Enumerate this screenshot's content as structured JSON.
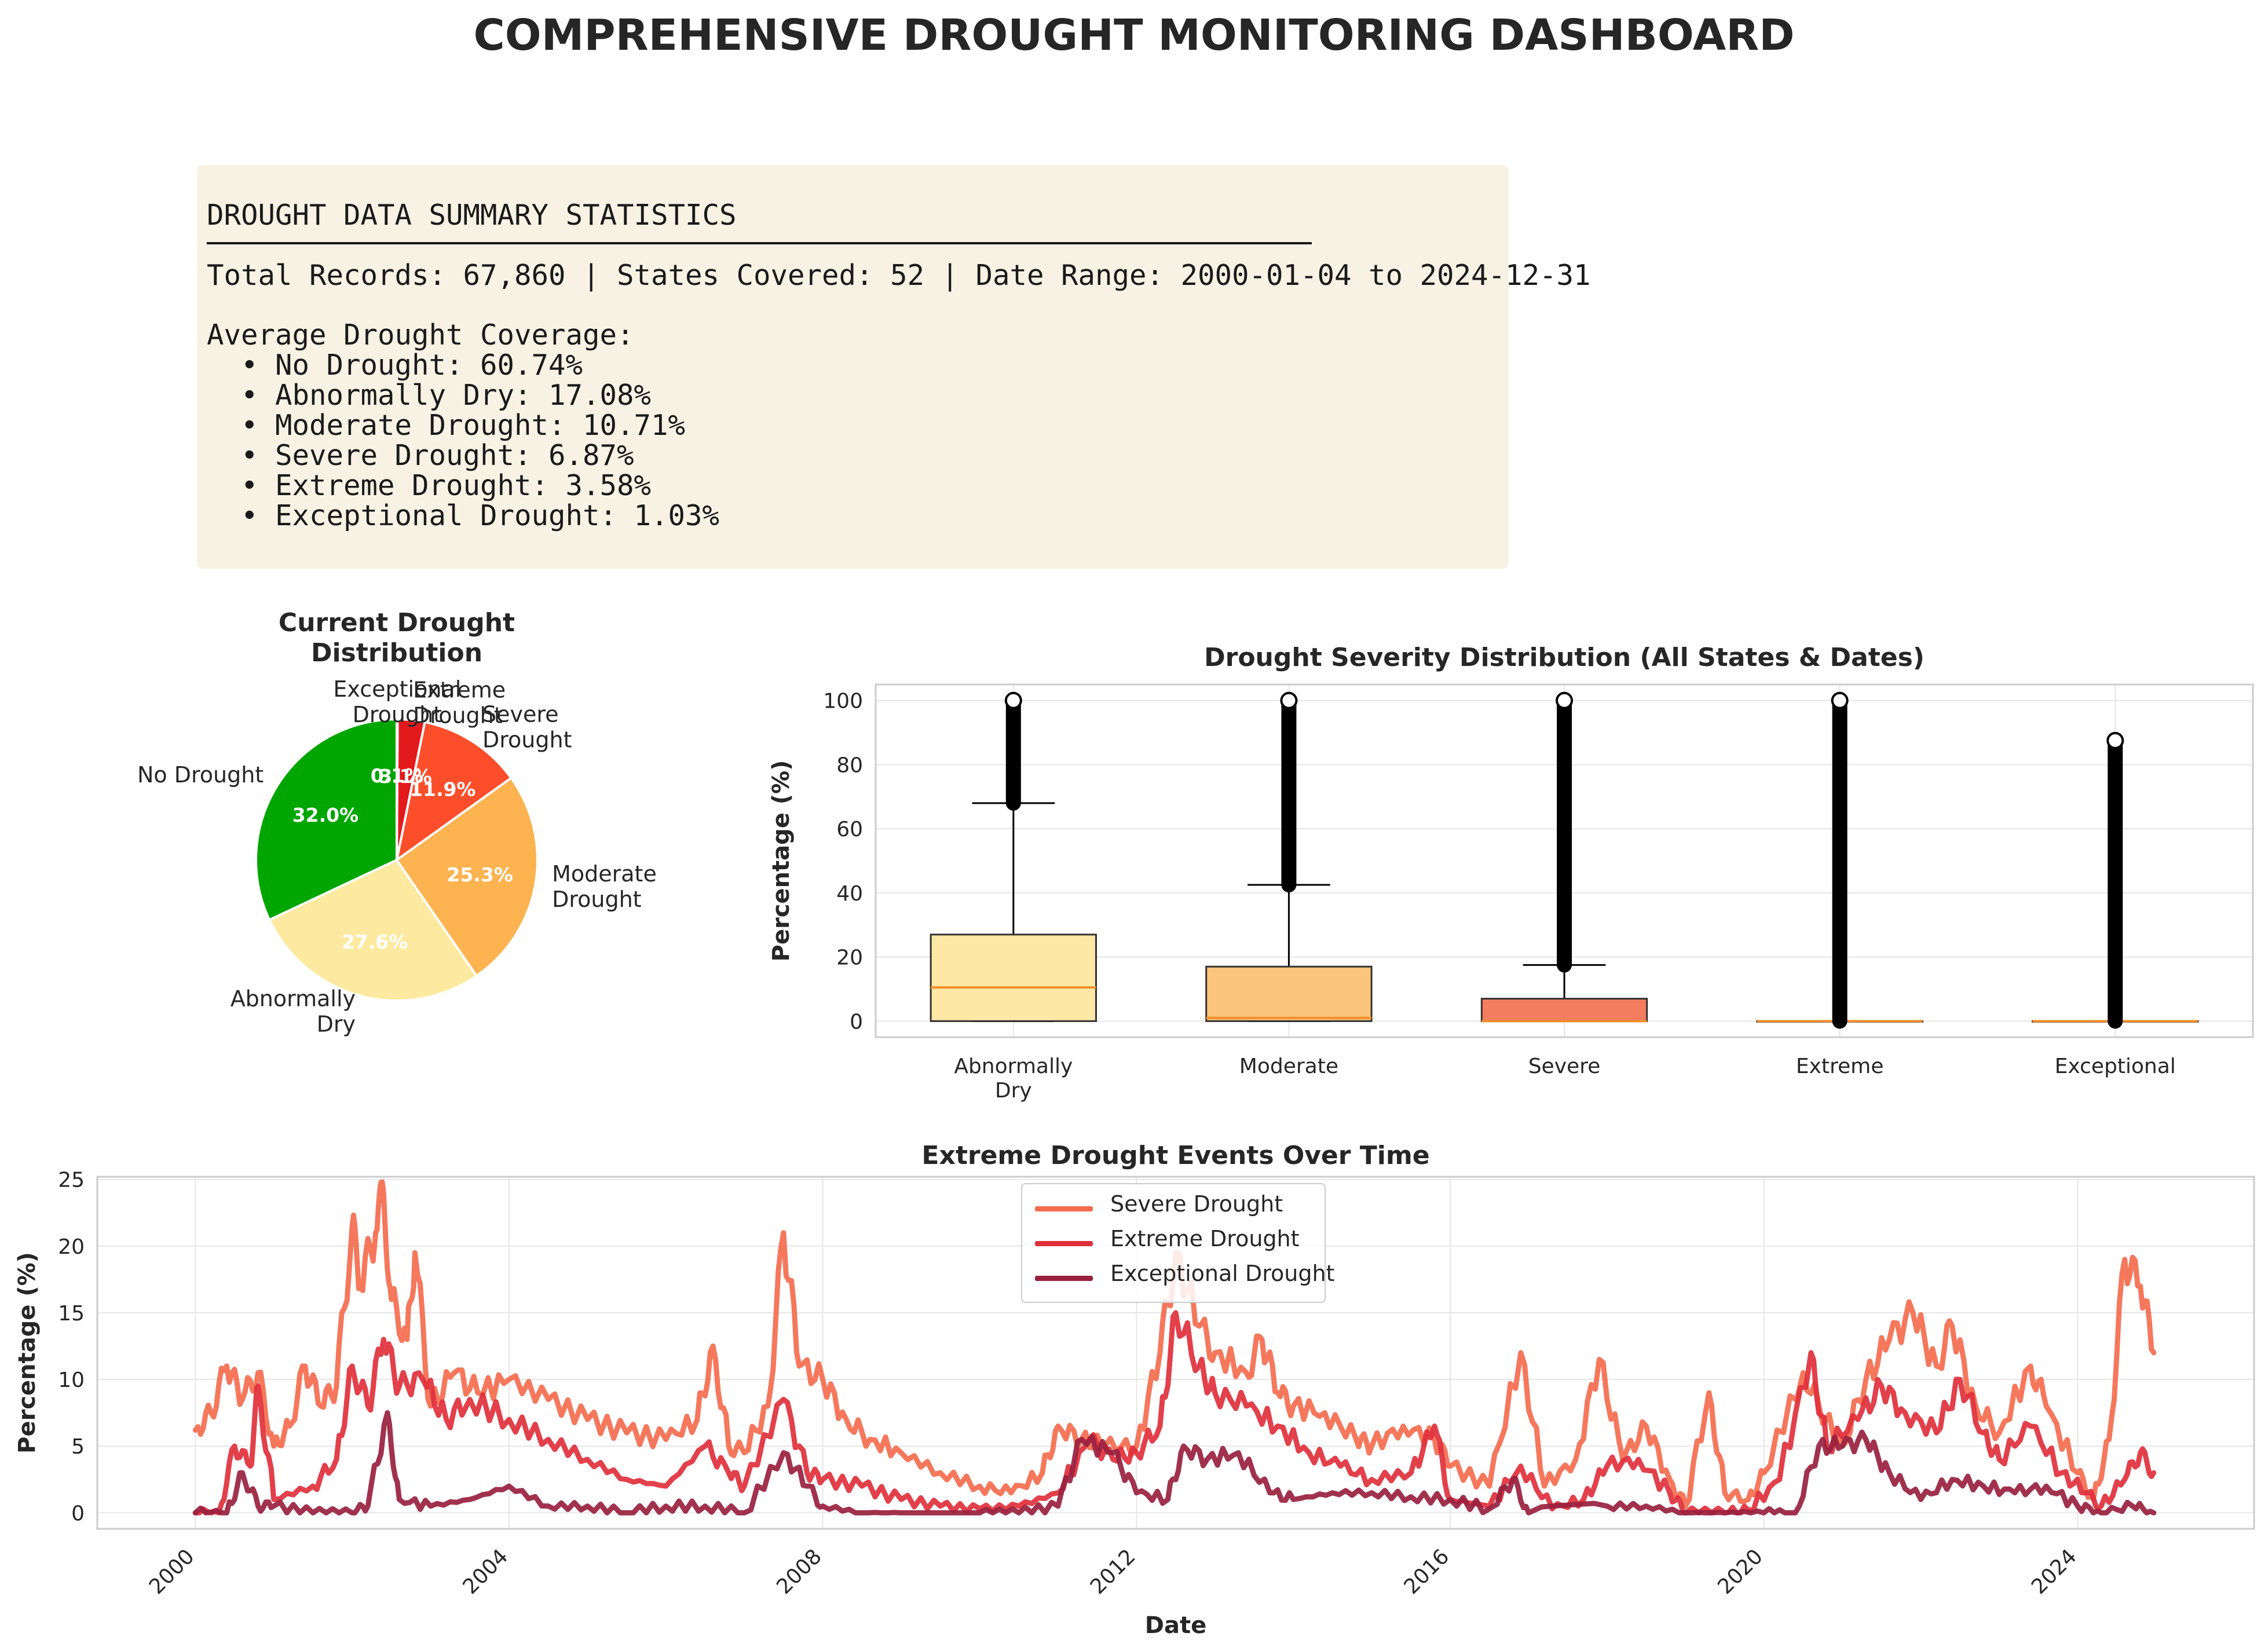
{
  "title": "COMPREHENSIVE DROUGHT MONITORING DASHBOARD",
  "summary": {
    "heading": "DROUGHT DATA SUMMARY STATISTICS",
    "records_line": "Total Records: 67,860 | States Covered: 52 | Date Range: 2000-01-04 to 2024-12-31",
    "avg_heading": "Average Drought Coverage:",
    "items": [
      "  • No Drought: 60.74%",
      "  • Abnormally Dry: 17.08%",
      "  • Moderate Drought: 10.71%",
      "  • Severe Drought: 6.87%",
      "  • Extreme Drought: 3.58%",
      "  • Exceptional Drought: 1.03%"
    ]
  },
  "chart_data": [
    {
      "type": "pie",
      "title": "Current Drought\nDistribution",
      "labels": [
        "No Drought",
        "Abnormally\nDry",
        "Moderate\nDrought",
        "Severe\nDrought",
        "Extreme\nDrought",
        "Exceptional\nDrought"
      ],
      "values": [
        32.0,
        27.6,
        25.3,
        11.9,
        3.1,
        0.1
      ],
      "value_labels": [
        "32.0%",
        "27.6%",
        "25.3%",
        "11.9%",
        "3.1%",
        "0.1%"
      ],
      "colors": [
        "#00a600",
        "#fdeaa0",
        "#fdb350",
        "#fc4e2a",
        "#e31a1c",
        "#bd0026"
      ]
    },
    {
      "type": "box",
      "title": "Drought Severity Distribution (All States & Dates)",
      "ylabel": "Percentage (%)",
      "categories": [
        "Abnormally\nDry",
        "Moderate",
        "Severe",
        "Extreme",
        "Exceptional"
      ],
      "ylim": [
        -5,
        105
      ],
      "yticks": [
        0,
        20,
        40,
        60,
        80,
        100
      ],
      "colors": [
        "#fee8a6",
        "#fdc57c",
        "#f47c5f",
        "#ed5a51",
        "#e6796f"
      ],
      "boxes": [
        {
          "min": 0,
          "q1": 0,
          "median": 10.5,
          "q3": 27,
          "whisker_high": 68,
          "flier_low": 68,
          "flier_high": 100
        },
        {
          "min": 0,
          "q1": 0,
          "median": 1,
          "q3": 17,
          "whisker_high": 42.5,
          "flier_low": 42.5,
          "flier_high": 100
        },
        {
          "min": 0,
          "q1": 0,
          "median": 0,
          "q3": 7,
          "whisker_high": 17.5,
          "flier_low": 17.5,
          "flier_high": 100
        },
        {
          "min": 0,
          "q1": 0,
          "median": 0,
          "q3": 0,
          "whisker_high": 0,
          "flier_low": 0,
          "flier_high": 100
        },
        {
          "min": 0,
          "q1": 0,
          "median": 0,
          "q3": 0,
          "whisker_high": 0,
          "flier_low": 0,
          "flier_high": 87.5
        }
      ],
      "grid": true
    },
    {
      "type": "line",
      "title": "Extreme Drought Events Over Time",
      "xlabel": "Date",
      "ylabel": "Percentage (%)",
      "xticks": [
        "2000",
        "2004",
        "2008",
        "2012",
        "2016",
        "2020",
        "2024"
      ],
      "xlim": [
        1998.75,
        2026.25
      ],
      "ylim": [
        -1.2,
        25.2
      ],
      "yticks": [
        0,
        5,
        10,
        15,
        20,
        25
      ],
      "grid": true,
      "legend": "upper center",
      "series": [
        {
          "name": "Severe Drought",
          "color": "#f46d4e",
          "points": [
            [
              2000.0,
              6.2
            ],
            [
              2000.2,
              7.5
            ],
            [
              2000.4,
              11.0
            ],
            [
              2000.6,
              8.5
            ],
            [
              2000.8,
              10.5
            ],
            [
              2001.0,
              5.0
            ],
            [
              2001.2,
              6.5
            ],
            [
              2001.4,
              11.0
            ],
            [
              2001.6,
              8.0
            ],
            [
              2001.8,
              9.5
            ],
            [
              2002.0,
              21.5
            ],
            [
              2002.1,
              17.0
            ],
            [
              2002.3,
              21.0
            ],
            [
              2002.4,
              24.0
            ],
            [
              2002.5,
              16.0
            ],
            [
              2002.7,
              13.0
            ],
            [
              2002.8,
              19.5
            ],
            [
              2003.0,
              8.0
            ],
            [
              2003.3,
              10.5
            ],
            [
              2003.6,
              9.0
            ],
            [
              2004.0,
              10.0
            ],
            [
              2004.5,
              8.5
            ],
            [
              2005.0,
              7.0
            ],
            [
              2005.5,
              6.0
            ],
            [
              2006.0,
              5.5
            ],
            [
              2006.4,
              7.0
            ],
            [
              2006.6,
              12.5
            ],
            [
              2006.8,
              5.0
            ],
            [
              2007.0,
              4.5
            ],
            [
              2007.3,
              8.0
            ],
            [
              2007.5,
              21.0
            ],
            [
              2007.7,
              11.0
            ],
            [
              2008.0,
              10.0
            ],
            [
              2008.3,
              7.0
            ],
            [
              2008.6,
              5.5
            ],
            [
              2009.0,
              4.5
            ],
            [
              2009.5,
              3.0
            ],
            [
              2010.0,
              2.0
            ],
            [
              2010.4,
              1.5
            ],
            [
              2010.8,
              3.0
            ],
            [
              2011.0,
              6.5
            ],
            [
              2011.3,
              5.5
            ],
            [
              2011.6,
              5.0
            ],
            [
              2012.0,
              5.0
            ],
            [
              2012.3,
              12.0
            ],
            [
              2012.5,
              19.5
            ],
            [
              2012.8,
              14.0
            ],
            [
              2013.0,
              12.0
            ],
            [
              2013.4,
              10.5
            ],
            [
              2013.6,
              13.0
            ],
            [
              2013.8,
              9.0
            ],
            [
              2014.0,
              8.0
            ],
            [
              2014.4,
              7.5
            ],
            [
              2014.8,
              5.5
            ],
            [
              2015.0,
              5.0
            ],
            [
              2015.4,
              6.5
            ],
            [
              2015.8,
              5.5
            ],
            [
              2016.0,
              3.5
            ],
            [
              2016.5,
              2.0
            ],
            [
              2016.9,
              12.0
            ],
            [
              2017.2,
              2.0
            ],
            [
              2017.6,
              4.0
            ],
            [
              2017.9,
              11.5
            ],
            [
              2018.2,
              4.0
            ],
            [
              2018.5,
              6.5
            ],
            [
              2018.8,
              2.5
            ],
            [
              2019.0,
              0.5
            ],
            [
              2019.3,
              9.0
            ],
            [
              2019.5,
              1.5
            ],
            [
              2019.8,
              1.0
            ],
            [
              2020.0,
              3.0
            ],
            [
              2020.5,
              10.5
            ],
            [
              2020.8,
              7.0
            ],
            [
              2021.0,
              5.0
            ],
            [
              2021.3,
              10.0
            ],
            [
              2021.6,
              13.0
            ],
            [
              2021.9,
              15.0
            ],
            [
              2022.2,
              11.0
            ],
            [
              2022.4,
              14.0
            ],
            [
              2022.7,
              8.0
            ],
            [
              2023.0,
              6.0
            ],
            [
              2023.4,
              11.0
            ],
            [
              2023.6,
              8.0
            ],
            [
              2024.0,
              3.0
            ],
            [
              2024.2,
              1.0
            ],
            [
              2024.4,
              5.5
            ],
            [
              2024.6,
              19.0
            ],
            [
              2024.8,
              17.0
            ],
            [
              2024.97,
              12.0
            ]
          ]
        },
        {
          "name": "Extreme Drought",
          "color": "#e0303b",
          "points": [
            [
              2000.0,
              0.0
            ],
            [
              2000.3,
              0.0
            ],
            [
              2000.5,
              5.0
            ],
            [
              2000.7,
              3.5
            ],
            [
              2000.8,
              9.5
            ],
            [
              2001.0,
              1.0
            ],
            [
              2001.5,
              2.0
            ],
            [
              2001.8,
              4.0
            ],
            [
              2002.0,
              11.0
            ],
            [
              2002.2,
              8.0
            ],
            [
              2002.4,
              13.0
            ],
            [
              2002.6,
              9.5
            ],
            [
              2002.9,
              10.0
            ],
            [
              2003.2,
              7.0
            ],
            [
              2003.5,
              8.5
            ],
            [
              2004.0,
              7.0
            ],
            [
              2004.5,
              5.5
            ],
            [
              2005.0,
              4.0
            ],
            [
              2005.5,
              2.5
            ],
            [
              2006.0,
              2.0
            ],
            [
              2006.5,
              5.0
            ],
            [
              2006.8,
              3.0
            ],
            [
              2007.0,
              2.0
            ],
            [
              2007.5,
              8.5
            ],
            [
              2007.8,
              3.0
            ],
            [
              2008.0,
              2.5
            ],
            [
              2008.5,
              2.0
            ],
            [
              2009.0,
              1.0
            ],
            [
              2009.5,
              0.5
            ],
            [
              2010.0,
              0.3
            ],
            [
              2010.5,
              0.5
            ],
            [
              2011.0,
              1.5
            ],
            [
              2011.4,
              5.5
            ],
            [
              2011.7,
              4.0
            ],
            [
              2012.0,
              4.5
            ],
            [
              2012.3,
              6.5
            ],
            [
              2012.5,
              15.0
            ],
            [
              2012.8,
              11.0
            ],
            [
              2013.0,
              9.0
            ],
            [
              2013.4,
              8.0
            ],
            [
              2013.8,
              6.5
            ],
            [
              2014.2,
              4.5
            ],
            [
              2014.6,
              3.5
            ],
            [
              2015.0,
              2.5
            ],
            [
              2015.5,
              3.0
            ],
            [
              2015.8,
              6.5
            ],
            [
              2016.0,
              1.0
            ],
            [
              2016.5,
              0.5
            ],
            [
              2016.9,
              3.5
            ],
            [
              2017.3,
              0.3
            ],
            [
              2017.7,
              1.0
            ],
            [
              2018.0,
              3.5
            ],
            [
              2018.4,
              4.0
            ],
            [
              2018.8,
              1.5
            ],
            [
              2019.0,
              0.0
            ],
            [
              2019.5,
              0.0
            ],
            [
              2019.8,
              0.2
            ],
            [
              2020.2,
              2.5
            ],
            [
              2020.6,
              12.0
            ],
            [
              2020.8,
              5.0
            ],
            [
              2021.2,
              7.0
            ],
            [
              2021.5,
              9.5
            ],
            [
              2021.8,
              7.5
            ],
            [
              2022.2,
              6.0
            ],
            [
              2022.5,
              10.0
            ],
            [
              2022.8,
              6.0
            ],
            [
              2023.0,
              4.0
            ],
            [
              2023.4,
              6.5
            ],
            [
              2023.8,
              3.0
            ],
            [
              2024.1,
              1.5
            ],
            [
              2024.3,
              0.5
            ],
            [
              2024.6,
              2.5
            ],
            [
              2024.8,
              4.5
            ],
            [
              2024.97,
              3.0
            ]
          ]
        },
        {
          "name": "Exceptional Drought",
          "color": "#99213f",
          "points": [
            [
              2000.0,
              0.0
            ],
            [
              2000.4,
              0.0
            ],
            [
              2000.6,
              3.0
            ],
            [
              2000.8,
              0.5
            ],
            [
              2001.0,
              0.5
            ],
            [
              2001.5,
              0.0
            ],
            [
              2002.0,
              0.0
            ],
            [
              2002.2,
              0.5
            ],
            [
              2002.45,
              7.5
            ],
            [
              2002.6,
              1.0
            ],
            [
              2003.0,
              0.5
            ],
            [
              2003.5,
              1.0
            ],
            [
              2004.0,
              2.0
            ],
            [
              2004.5,
              0.5
            ],
            [
              2005.0,
              0.5
            ],
            [
              2005.5,
              0.0
            ],
            [
              2006.0,
              0.5
            ],
            [
              2006.5,
              0.5
            ],
            [
              2007.0,
              0.0
            ],
            [
              2007.5,
              4.5
            ],
            [
              2007.8,
              2.0
            ],
            [
              2008.0,
              0.5
            ],
            [
              2008.5,
              0.0
            ],
            [
              2009.0,
              0.0
            ],
            [
              2010.0,
              0.0
            ],
            [
              2010.5,
              0.0
            ],
            [
              2011.0,
              0.5
            ],
            [
              2011.3,
              5.5
            ],
            [
              2011.7,
              4.5
            ],
            [
              2012.0,
              1.5
            ],
            [
              2012.4,
              1.0
            ],
            [
              2012.6,
              5.0
            ],
            [
              2012.9,
              4.0
            ],
            [
              2013.3,
              4.5
            ],
            [
              2013.7,
              1.5
            ],
            [
              2014.0,
              1.0
            ],
            [
              2014.5,
              1.5
            ],
            [
              2015.0,
              1.5
            ],
            [
              2015.5,
              1.2
            ],
            [
              2016.0,
              1.0
            ],
            [
              2016.5,
              0.3
            ],
            [
              2016.8,
              2.5
            ],
            [
              2017.0,
              0.0
            ],
            [
              2018.0,
              0.5
            ],
            [
              2018.5,
              0.5
            ],
            [
              2019.0,
              0.0
            ],
            [
              2019.5,
              0.0
            ],
            [
              2020.0,
              0.0
            ],
            [
              2020.4,
              0.0
            ],
            [
              2020.7,
              5.0
            ],
            [
              2021.0,
              5.0
            ],
            [
              2021.3,
              5.5
            ],
            [
              2021.6,
              3.0
            ],
            [
              2022.0,
              1.0
            ],
            [
              2022.4,
              2.5
            ],
            [
              2022.8,
              2.0
            ],
            [
              2023.2,
              1.5
            ],
            [
              2023.6,
              2.0
            ],
            [
              2024.0,
              0.5
            ],
            [
              2024.3,
              0.0
            ],
            [
              2024.7,
              0.5
            ],
            [
              2024.97,
              0.0
            ]
          ]
        }
      ]
    }
  ]
}
